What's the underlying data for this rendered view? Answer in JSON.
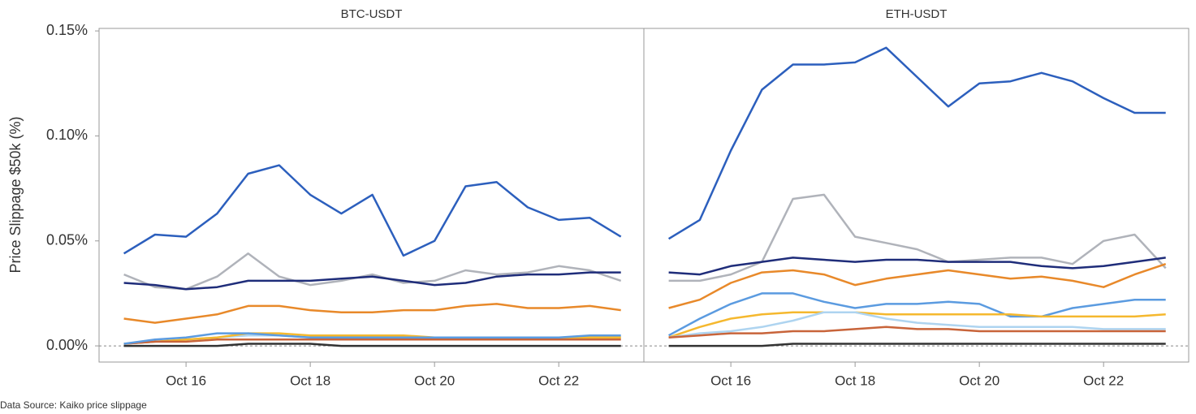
{
  "chart_data": [
    {
      "type": "line",
      "title": "BTC-USDT",
      "y_label": "Price Slippage $50k (%)",
      "x": [
        15,
        15.5,
        16,
        16.5,
        17,
        17.5,
        18,
        18.5,
        19,
        19.5,
        20,
        20.5,
        21,
        21.5,
        22,
        22.5,
        23
      ],
      "xlim": [
        14.6,
        23.37
      ],
      "xticks": [
        {
          "value": 16,
          "label": "Oct 16"
        },
        {
          "value": 18,
          "label": "Oct 18"
        },
        {
          "value": 20,
          "label": "Oct 20"
        },
        {
          "value": 22,
          "label": "Oct 22"
        }
      ],
      "ylim": [
        -0.0077,
        0.1512
      ],
      "yticks": [
        {
          "value": 0,
          "label": "0.00%"
        },
        {
          "value": 0.05,
          "label": "0.05%"
        },
        {
          "value": 0.1,
          "label": "0.10%"
        },
        {
          "value": 0.15,
          "label": "0.15%"
        }
      ],
      "series": [
        {
          "color": "#b0b3ba",
          "values": [
            0.034,
            0.028,
            0.027,
            0.033,
            0.044,
            0.033,
            0.029,
            0.031,
            0.034,
            0.03,
            0.031,
            0.036,
            0.034,
            0.035,
            0.038,
            0.036,
            0.031
          ]
        },
        {
          "color": "#1f2d7a",
          "values": [
            0.03,
            0.029,
            0.027,
            0.028,
            0.031,
            0.031,
            0.031,
            0.032,
            0.033,
            0.031,
            0.029,
            0.03,
            0.033,
            0.034,
            0.034,
            0.035,
            0.035
          ]
        },
        {
          "color": "#e8892a",
          "values": [
            0.013,
            0.011,
            0.013,
            0.015,
            0.019,
            0.019,
            0.017,
            0.016,
            0.016,
            0.017,
            0.017,
            0.019,
            0.02,
            0.018,
            0.018,
            0.019,
            0.017
          ]
        },
        {
          "color": "#aed4f0",
          "values": [
            0.001,
            0.002,
            0.003,
            0.004,
            0.005,
            0.005,
            0.004,
            0.004,
            0.004,
            0.004,
            0.004,
            0.004,
            0.004,
            0.004,
            0.004,
            0.004,
            0.004
          ]
        },
        {
          "color": "#f5b82e",
          "values": [
            0.001,
            0.002,
            0.003,
            0.004,
            0.006,
            0.006,
            0.005,
            0.005,
            0.005,
            0.005,
            0.004,
            0.004,
            0.004,
            0.004,
            0.004,
            0.004,
            0.004
          ]
        },
        {
          "color": "#c8643a",
          "values": [
            0.001,
            0.002,
            0.002,
            0.003,
            0.003,
            0.003,
            0.003,
            0.003,
            0.003,
            0.003,
            0.003,
            0.003,
            0.003,
            0.003,
            0.003,
            0.003,
            0.003
          ]
        },
        {
          "color": "#5b9be0",
          "values": [
            0.001,
            0.003,
            0.004,
            0.006,
            0.006,
            0.005,
            0.004,
            0.004,
            0.004,
            0.004,
            0.004,
            0.004,
            0.004,
            0.004,
            0.004,
            0.005,
            0.005
          ]
        },
        {
          "color": "#333333",
          "values": [
            0,
            0,
            0,
            0,
            0.001,
            0.001,
            0.001,
            0,
            0,
            0,
            0,
            0,
            0,
            0,
            0,
            0,
            0
          ]
        },
        {
          "color": "#2c5fbd",
          "values": [
            0.044,
            0.053,
            0.052,
            0.063,
            0.082,
            0.086,
            0.072,
            0.063,
            0.072,
            0.043,
            0.05,
            0.076,
            0.078,
            0.066,
            0.06,
            0.061,
            0.052
          ]
        }
      ]
    },
    {
      "type": "line",
      "title": "ETH-USDT",
      "x": [
        15,
        15.5,
        16,
        16.5,
        17,
        17.5,
        18,
        18.5,
        19,
        19.5,
        20,
        20.5,
        21,
        21.5,
        22,
        22.5,
        23
      ],
      "xlim": [
        14.6,
        23.37
      ],
      "xticks": [
        {
          "value": 16,
          "label": "Oct 16"
        },
        {
          "value": 18,
          "label": "Oct 18"
        },
        {
          "value": 20,
          "label": "Oct 20"
        },
        {
          "value": 22,
          "label": "Oct 22"
        }
      ],
      "ylim": [
        -0.0077,
        0.1512
      ],
      "series": [
        {
          "color": "#b0b3ba",
          "values": [
            0.031,
            0.031,
            0.034,
            0.04,
            0.07,
            0.072,
            0.052,
            0.049,
            0.046,
            0.04,
            0.041,
            0.042,
            0.042,
            0.039,
            0.05,
            0.053,
            0.037
          ]
        },
        {
          "color": "#1f2d7a",
          "values": [
            0.035,
            0.034,
            0.038,
            0.04,
            0.042,
            0.041,
            0.04,
            0.041,
            0.041,
            0.04,
            0.04,
            0.04,
            0.038,
            0.037,
            0.038,
            0.04,
            0.042
          ]
        },
        {
          "color": "#e8892a",
          "values": [
            0.018,
            0.022,
            0.03,
            0.035,
            0.036,
            0.034,
            0.029,
            0.032,
            0.034,
            0.036,
            0.034,
            0.032,
            0.033,
            0.031,
            0.028,
            0.034,
            0.039
          ]
        },
        {
          "color": "#5b9be0",
          "values": [
            0.005,
            0.013,
            0.02,
            0.025,
            0.025,
            0.021,
            0.018,
            0.02,
            0.02,
            0.021,
            0.02,
            0.014,
            0.014,
            0.018,
            0.02,
            0.022,
            0.022
          ]
        },
        {
          "color": "#f5b82e",
          "values": [
            0.004,
            0.009,
            0.013,
            0.015,
            0.016,
            0.016,
            0.016,
            0.015,
            0.015,
            0.015,
            0.015,
            0.015,
            0.014,
            0.014,
            0.014,
            0.014,
            0.015
          ]
        },
        {
          "color": "#aed4f0",
          "values": [
            0.004,
            0.006,
            0.007,
            0.009,
            0.012,
            0.016,
            0.016,
            0.013,
            0.011,
            0.01,
            0.009,
            0.009,
            0.009,
            0.009,
            0.008,
            0.008,
            0.008
          ]
        },
        {
          "color": "#c8643a",
          "values": [
            0.004,
            0.005,
            0.006,
            0.006,
            0.007,
            0.007,
            0.008,
            0.009,
            0.008,
            0.008,
            0.007,
            0.007,
            0.007,
            0.007,
            0.007,
            0.007,
            0.007
          ]
        },
        {
          "color": "#333333",
          "values": [
            0,
            0,
            0,
            0,
            0.001,
            0.001,
            0.001,
            0.001,
            0.001,
            0.001,
            0.001,
            0.001,
            0.001,
            0.001,
            0.001,
            0.001,
            0.001
          ]
        },
        {
          "color": "#2c5fbd",
          "values": [
            0.051,
            0.06,
            0.093,
            0.122,
            0.134,
            0.134,
            0.135,
            0.142,
            0.128,
            0.114,
            0.125,
            0.126,
            0.13,
            0.126,
            0.118,
            0.111,
            0.111
          ]
        }
      ]
    }
  ],
  "source": "Data Source: Kaiko price slippage"
}
